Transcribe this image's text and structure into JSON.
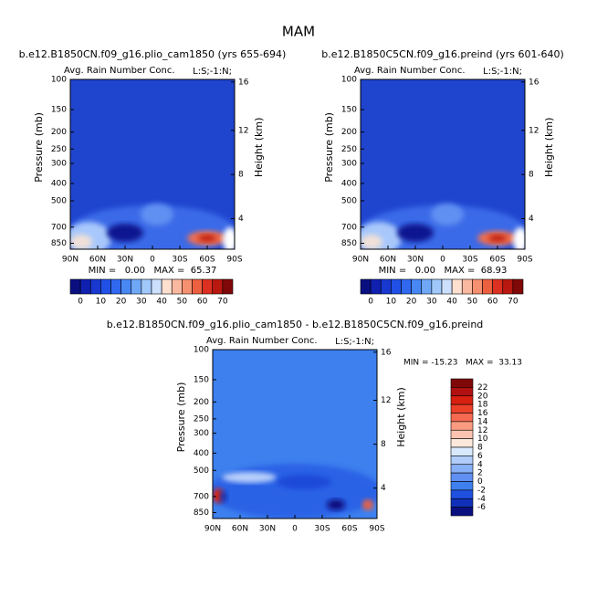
{
  "title": "MAM",
  "panels": [
    {
      "subtitle": "b.e12.B1850CN.f09_g16.plio_cam1850 (yrs 655-694)",
      "label": "Avg. Rain Number Conc.",
      "corner": "L:S;-1:N;",
      "y_label": "Pressure (mb)",
      "y2_label": "Height (km)",
      "y_ticks": [
        "100",
        "150",
        "200",
        "250",
        "300",
        "400",
        "500",
        "700",
        "850"
      ],
      "y2_ticks": [
        "16",
        "12",
        "8",
        "4"
      ],
      "x_ticks": [
        "90N",
        "60N",
        "30N",
        "0",
        "30S",
        "60S",
        "90S"
      ],
      "min_max": "MIN =   0.00   MAX =  65.37",
      "colorbar": [
        "0",
        "10",
        "20",
        "30",
        "40",
        "50",
        "60",
        "70"
      ]
    },
    {
      "subtitle": "b.e12.B1850C5CN.f09_g16.preind (yrs 601-640)",
      "label": "Avg. Rain Number Conc.",
      "corner": "L:S;-1:N;",
      "y_label": "Pressure (mb)",
      "y2_label": "Height (km)",
      "y_ticks": [
        "100",
        "150",
        "200",
        "250",
        "300",
        "400",
        "500",
        "700",
        "850"
      ],
      "y2_ticks": [
        "16",
        "12",
        "8",
        "4"
      ],
      "x_ticks": [
        "90N",
        "60N",
        "30N",
        "0",
        "30S",
        "60S",
        "90S"
      ],
      "min_max": "MIN =   0.00   MAX =  68.93",
      "colorbar": [
        "0",
        "10",
        "20",
        "30",
        "40",
        "50",
        "60",
        "70"
      ]
    },
    {
      "subtitle": "b.e12.B1850CN.f09_g16.plio_cam1850 - b.e12.B1850C5CN.f09_g16.preind",
      "label": "Avg. Rain Number Conc.",
      "corner": "L:S;-1:N;",
      "y_label": "Pressure (mb)",
      "y2_label": "Height (km)",
      "y_ticks": [
        "100",
        "150",
        "200",
        "250",
        "300",
        "400",
        "500",
        "700",
        "850"
      ],
      "y2_ticks": [
        "16",
        "12",
        "8",
        "4"
      ],
      "x_ticks": [
        "90N",
        "60N",
        "30N",
        "0",
        "30S",
        "60S",
        "90S"
      ],
      "min_max": "MIN = -15.23   MAX =  33.13",
      "colorbar": [
        "22",
        "20",
        "18",
        "16",
        "14",
        "12",
        "10",
        "8",
        "6",
        "4",
        "2",
        "0",
        "-2",
        "-4",
        "-6"
      ]
    }
  ]
}
